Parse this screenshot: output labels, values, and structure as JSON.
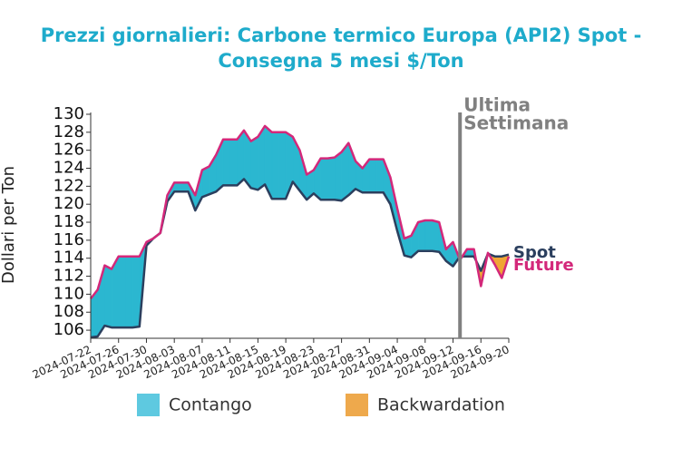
{
  "chart_data": {
    "type": "line",
    "title": [
      "Prezzi giornalieri: Carbone termico Europa (API2) Spot -",
      "Consegna 5 mesi $/Ton"
    ],
    "ylabel": "Dollari per Ton",
    "x": [
      "2024-07-22",
      "2024-07-23",
      "2024-07-24",
      "2024-07-25",
      "2024-07-26",
      "2024-07-27",
      "2024-07-28",
      "2024-07-29",
      "2024-07-30",
      "2024-07-31",
      "2024-08-01",
      "2024-08-02",
      "2024-08-03",
      "2024-08-04",
      "2024-08-05",
      "2024-08-06",
      "2024-08-07",
      "2024-08-08",
      "2024-08-09",
      "2024-08-10",
      "2024-08-11",
      "2024-08-12",
      "2024-08-13",
      "2024-08-14",
      "2024-08-15",
      "2024-08-16",
      "2024-08-17",
      "2024-08-18",
      "2024-08-19",
      "2024-08-20",
      "2024-08-21",
      "2024-08-22",
      "2024-08-23",
      "2024-08-24",
      "2024-08-25",
      "2024-08-26",
      "2024-08-27",
      "2024-08-28",
      "2024-08-29",
      "2024-08-30",
      "2024-08-31",
      "2024-09-01",
      "2024-09-02",
      "2024-09-03",
      "2024-09-04",
      "2024-09-05",
      "2024-09-06",
      "2024-09-07",
      "2024-09-08",
      "2024-09-09",
      "2024-09-10",
      "2024-09-11",
      "2024-09-12",
      "2024-09-13",
      "2024-09-14",
      "2024-09-15",
      "2024-09-16",
      "2024-09-17",
      "2024-09-18",
      "2024-09-19",
      "2024-09-20"
    ],
    "series": [
      {
        "name": "Spot",
        "color": "#2b3f5e",
        "values": [
          105.2,
          105.3,
          106.5,
          106.3,
          106.3,
          106.3,
          106.3,
          106.4,
          115.4,
          116.2,
          116.8,
          120.3,
          121.4,
          121.4,
          121.4,
          119.3,
          120.8,
          121.1,
          121.4,
          122.1,
          122.1,
          122.1,
          122.8,
          121.8,
          121.6,
          122.2,
          120.6,
          120.6,
          120.6,
          122.5,
          121.5,
          120.5,
          121.2,
          120.5,
          120.5,
          120.5,
          120.4,
          121.0,
          121.7,
          121.3,
          121.3,
          121.3,
          121.3,
          120.0,
          117.0,
          114.3,
          114.1,
          114.8,
          114.8,
          114.8,
          114.7,
          113.7,
          113.1,
          114.2,
          114.2,
          114.2,
          112.6,
          114.5,
          114.2,
          114.2,
          114.4
        ]
      },
      {
        "name": "Future",
        "color": "#d3287a",
        "values": [
          109.5,
          110.5,
          113.2,
          112.8,
          114.2,
          114.2,
          114.2,
          114.2,
          115.8,
          116.2,
          116.8,
          121.0,
          122.4,
          122.4,
          122.4,
          121.0,
          123.8,
          124.2,
          125.5,
          127.2,
          127.2,
          127.2,
          128.2,
          127.0,
          127.5,
          128.7,
          128.0,
          128.0,
          128.0,
          127.5,
          126.0,
          123.3,
          123.8,
          125.1,
          125.1,
          125.2,
          125.8,
          126.8,
          124.8,
          124.0,
          125.0,
          125.0,
          125.0,
          123.0,
          119.5,
          116.2,
          116.5,
          118.0,
          118.2,
          118.2,
          118.0,
          115.0,
          115.8,
          113.8,
          115.0,
          115.0,
          110.9,
          114.6,
          113.3,
          111.8,
          114.2
        ]
      }
    ],
    "fills": [
      {
        "name": "Contango",
        "color": "#2bb7d0"
      },
      {
        "name": "Backwardation",
        "color": "#f0a535"
      }
    ],
    "legend_colors": [
      "#5ec9e0",
      "#eea94c"
    ],
    "annotation": {
      "text": [
        "Ultima",
        "Settimana"
      ],
      "x": "2024-09-13",
      "color": "#808080"
    },
    "xlim": [
      "2024-07-22",
      "2024-09-20"
    ],
    "xticks": [
      "2024-07-22",
      "2024-07-26",
      "2024-07-30",
      "2024-08-03",
      "2024-08-07",
      "2024-08-11",
      "2024-08-15",
      "2024-08-19",
      "2024-08-23",
      "2024-08-27",
      "2024-08-31",
      "2024-09-04",
      "2024-09-08",
      "2024-09-12",
      "2024-09-16",
      "2024-09-20"
    ],
    "ylim": [
      105.1,
      130.2
    ],
    "yticks": [
      106,
      108,
      110,
      112,
      114,
      116,
      118,
      120,
      122,
      124,
      126,
      128,
      130
    ]
  }
}
